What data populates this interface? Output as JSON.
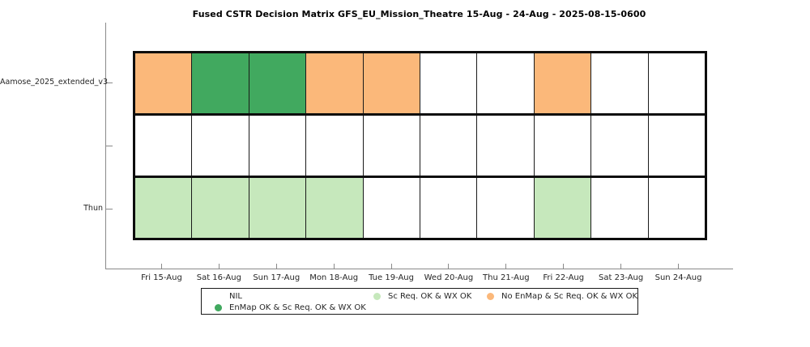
{
  "chart_data": {
    "type": "heatmap",
    "title": "Fused CSTR Decision Matrix GFS_EU_Mission_Theatre 15-Aug - 24-Aug - 2025-08-15-0600",
    "x_categories": [
      "Fri 15-Aug",
      "Sat 16-Aug",
      "Sun 17-Aug",
      "Mon 18-Aug",
      "Tue 19-Aug",
      "Wed 20-Aug",
      "Thu 21-Aug",
      "Fri 22-Aug",
      "Sat 23-Aug",
      "Sun 24-Aug"
    ],
    "rows": [
      {
        "label": "Aamose_2025_extended_v3",
        "cells": [
          "no_enmap",
          "enmap_ok",
          "enmap_ok",
          "no_enmap",
          "no_enmap",
          "nil",
          "nil",
          "no_enmap",
          "nil",
          "nil"
        ]
      },
      {
        "label": "",
        "cells": [
          "nil",
          "nil",
          "nil",
          "nil",
          "nil",
          "nil",
          "nil",
          "nil",
          "nil",
          "nil"
        ]
      },
      {
        "label": "Thun",
        "cells": [
          "sc_req",
          "sc_req",
          "sc_req",
          "sc_req",
          "nil",
          "nil",
          "nil",
          "sc_req",
          "nil",
          "nil"
        ]
      }
    ],
    "states": {
      "nil": {
        "label": "NIL",
        "color": "#ffffff"
      },
      "enmap_ok": {
        "label": "EnMap OK & Sc Req. OK & WX OK",
        "color": "#41a95f"
      },
      "sc_req": {
        "label": "Sc Req. OK & WX OK",
        "color": "#c6e8bc"
      },
      "no_enmap": {
        "label": "No EnMap & Sc Req. OK & WX OK",
        "color": "#fbb87a"
      }
    },
    "legend": {
      "position": "bottom",
      "entries": [
        "nil",
        "enmap_ok",
        "sc_req",
        "no_enmap"
      ]
    },
    "grid": true,
    "axis_color": "#8a8a8a",
    "border_color": "#0d0d0d"
  }
}
